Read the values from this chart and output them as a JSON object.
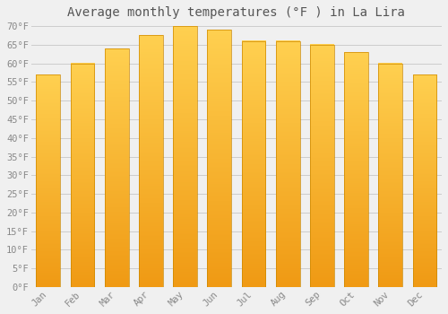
{
  "title": "Average monthly temperatures (°F ) in La Lira",
  "months": [
    "Jan",
    "Feb",
    "Mar",
    "Apr",
    "May",
    "Jun",
    "Jul",
    "Aug",
    "Sep",
    "Oct",
    "Nov",
    "Dec"
  ],
  "values": [
    57,
    60,
    64,
    67.5,
    70,
    69,
    66,
    66,
    65,
    63,
    60,
    57
  ],
  "bar_color": "#FFB700",
  "bar_color_bright": "#FFD060",
  "bar_edge_color": "#CC8800",
  "ylim": [
    0,
    70
  ],
  "yticks": [
    0,
    5,
    10,
    15,
    20,
    25,
    30,
    35,
    40,
    45,
    50,
    55,
    60,
    65,
    70
  ],
  "ytick_labels": [
    "0°F",
    "5°F",
    "10°F",
    "15°F",
    "20°F",
    "25°F",
    "30°F",
    "35°F",
    "40°F",
    "45°F",
    "50°F",
    "55°F",
    "60°F",
    "65°F",
    "70°F"
  ],
  "grid_color": "#cccccc",
  "bg_color": "#f0f0f0",
  "title_fontsize": 10,
  "tick_fontsize": 7.5,
  "font_family": "monospace",
  "bar_width": 0.7
}
